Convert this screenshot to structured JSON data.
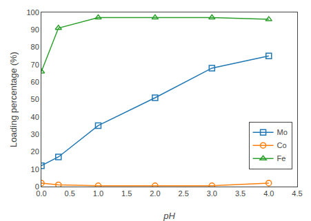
{
  "chart_data": {
    "type": "line",
    "xlabel": "pH",
    "ylabel": "Loading percentage (%)",
    "xlim": [
      0,
      4.5
    ],
    "ylim": [
      0,
      100
    ],
    "xticks": [
      {
        "value": 0,
        "label": "0.0"
      },
      0.5,
      {
        "value": 1,
        "label": "1.0"
      },
      1.5,
      {
        "value": 2,
        "label": "2.0"
      },
      2.5,
      {
        "value": 3,
        "label": "3.0"
      },
      3.5,
      {
        "value": 4,
        "label": "4.0"
      },
      4.5
    ],
    "yticks": [
      0,
      10,
      20,
      30,
      40,
      50,
      60,
      70,
      80,
      90,
      100
    ],
    "grid": false,
    "legend": "lower right",
    "series": [
      {
        "name": "Mo",
        "marker": "square",
        "x": [
          0.0,
          0.3,
          1.0,
          2.0,
          3.0,
          4.0
        ],
        "values": [
          12,
          17,
          35,
          51,
          68,
          75
        ]
      },
      {
        "name": "Co",
        "marker": "circle",
        "x": [
          0.0,
          0.3,
          1.0,
          2.0,
          3.0,
          4.0
        ],
        "values": [
          2,
          1,
          0.5,
          0.5,
          0.5,
          2
        ]
      },
      {
        "name": "Fe",
        "marker": "triangle",
        "x": [
          0.0,
          0.3,
          1.0,
          2.0,
          3.0,
          4.0
        ],
        "values": [
          66,
          91,
          97,
          97,
          97,
          96
        ]
      }
    ]
  }
}
